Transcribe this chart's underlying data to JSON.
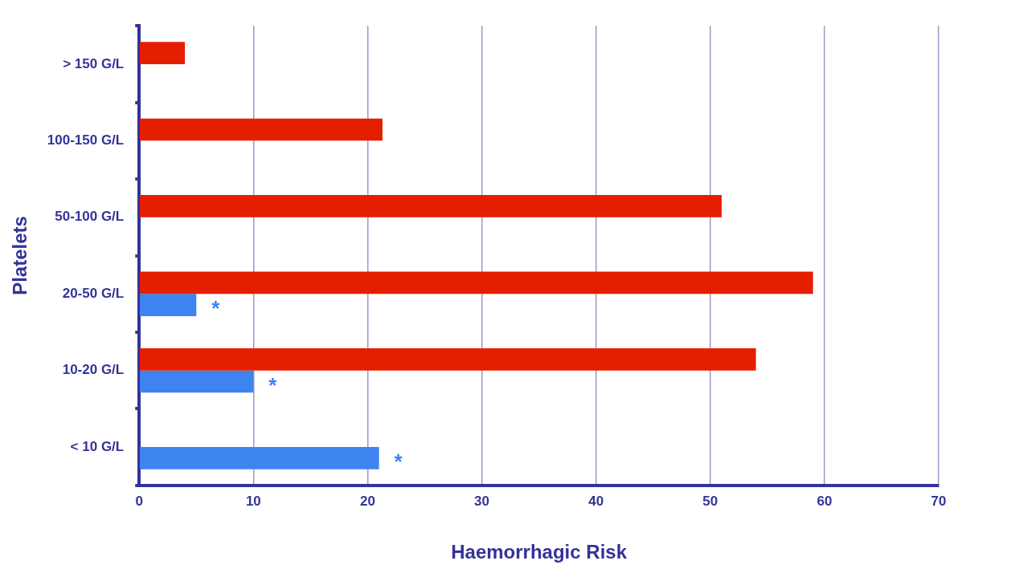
{
  "chart_data": {
    "type": "bar",
    "orientation": "horizontal",
    "xlabel": "Haemorrhagic Risk",
    "ylabel": "Platelets",
    "categories": [
      "> 150 G/L",
      "100-150 G/L",
      "50-100 G/L",
      "20-50 G/L",
      "10-20 G/L",
      "< 10 G/L"
    ],
    "series": [
      {
        "color": "#e61e00",
        "values": [
          4,
          21.3,
          51,
          59,
          54,
          null
        ]
      },
      {
        "color": "#3d84f0",
        "values": [
          null,
          null,
          null,
          5,
          10,
          21
        ]
      }
    ],
    "xlim": [
      0,
      70
    ],
    "xticks": [
      0,
      10,
      20,
      30,
      40,
      50,
      60,
      70
    ],
    "grid": "x",
    "legend": false,
    "annotations": [
      {
        "text": "*",
        "x": 5,
        "y": "20-50 G/L"
      },
      {
        "text": "*",
        "x": 10,
        "y": "10-20 G/L"
      },
      {
        "text": "*",
        "x": 21,
        "y": "< 10 G/L"
      }
    ]
  }
}
